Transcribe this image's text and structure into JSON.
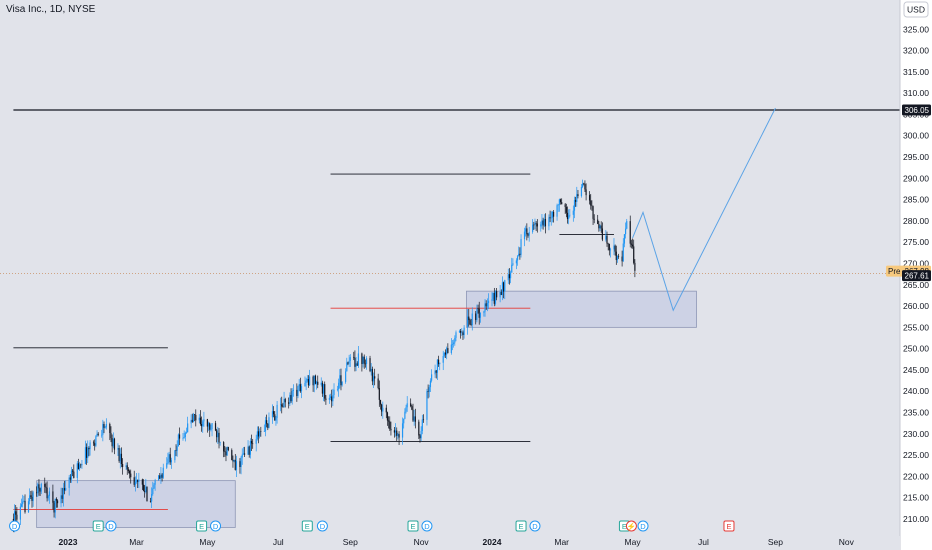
{
  "chart_data": {
    "type": "candlestick",
    "title": "Visa Inc., 1D, NYSE",
    "currency": "USD",
    "ylim": [
      206,
      330
    ],
    "y_ticks": [
      210,
      215,
      220,
      225,
      230,
      235,
      240,
      245,
      250,
      255,
      260,
      265,
      270,
      275,
      280,
      285,
      290,
      295,
      300,
      305,
      310,
      315,
      320,
      325
    ],
    "y_tick_labels": [
      "210.00",
      "215.00",
      "220.00",
      "225.00",
      "230.00",
      "235.00",
      "240.00",
      "245.00",
      "250.00",
      "255.00",
      "260.00",
      "265.00",
      "270.00",
      "275.00",
      "280.00",
      "285.00",
      "290.00",
      "295.00",
      "300.00",
      "305.00",
      "310.00",
      "315.00",
      "320.00",
      "325.00"
    ],
    "x_tick_labels": [
      {
        "label": "2023",
        "date": "2023-01-01",
        "bold": true
      },
      {
        "label": "Mar",
        "date": "2023-03-01",
        "bold": false
      },
      {
        "label": "May",
        "date": "2023-05-01",
        "bold": false
      },
      {
        "label": "Jul",
        "date": "2023-07-01",
        "bold": false
      },
      {
        "label": "Sep",
        "date": "2023-09-01",
        "bold": false
      },
      {
        "label": "Nov",
        "date": "2023-11-01",
        "bold": false
      },
      {
        "label": "2024",
        "date": "2024-01-01",
        "bold": true
      },
      {
        "label": "Mar",
        "date": "2024-03-01",
        "bold": false
      },
      {
        "label": "May",
        "date": "2024-05-01",
        "bold": false
      },
      {
        "label": "Jul",
        "date": "2024-07-01",
        "bold": false
      },
      {
        "label": "Sep",
        "date": "2024-09-01",
        "bold": false
      },
      {
        "label": "Nov",
        "date": "2024-11-01",
        "bold": false
      }
    ],
    "price_path": [
      {
        "date": "2022-11-15",
        "close": 210
      },
      {
        "date": "2022-12-10",
        "close": 218
      },
      {
        "date": "2022-12-20",
        "close": 213
      },
      {
        "date": "2023-01-15",
        "close": 225
      },
      {
        "date": "2023-02-01",
        "close": 232
      },
      {
        "date": "2023-02-20",
        "close": 222
      },
      {
        "date": "2023-03-12",
        "close": 215
      },
      {
        "date": "2023-04-05",
        "close": 228
      },
      {
        "date": "2023-04-20",
        "close": 234
      },
      {
        "date": "2023-05-10",
        "close": 230
      },
      {
        "date": "2023-05-25",
        "close": 222
      },
      {
        "date": "2023-06-20",
        "close": 232
      },
      {
        "date": "2023-07-15",
        "close": 240
      },
      {
        "date": "2023-08-01",
        "close": 243
      },
      {
        "date": "2023-08-15",
        "close": 238
      },
      {
        "date": "2023-09-01",
        "close": 247
      },
      {
        "date": "2023-09-15",
        "close": 248
      },
      {
        "date": "2023-09-30",
        "close": 235
      },
      {
        "date": "2023-10-12",
        "close": 229
      },
      {
        "date": "2023-10-20",
        "close": 238
      },
      {
        "date": "2023-10-30",
        "close": 229
      },
      {
        "date": "2023-11-10",
        "close": 244
      },
      {
        "date": "2023-11-25",
        "close": 250
      },
      {
        "date": "2023-12-10",
        "close": 256
      },
      {
        "date": "2023-12-28",
        "close": 260
      },
      {
        "date": "2024-01-15",
        "close": 266
      },
      {
        "date": "2024-01-31",
        "close": 278
      },
      {
        "date": "2024-02-15",
        "close": 279
      },
      {
        "date": "2024-02-28",
        "close": 284
      },
      {
        "date": "2024-03-08",
        "close": 281
      },
      {
        "date": "2024-03-18",
        "close": 289
      },
      {
        "date": "2024-03-28",
        "close": 282
      },
      {
        "date": "2024-04-10",
        "close": 274
      },
      {
        "date": "2024-04-22",
        "close": 271
      },
      {
        "date": "2024-04-26",
        "close": 280
      },
      {
        "date": "2024-05-04",
        "close": 268
      }
    ],
    "current_price": {
      "value": 267.61,
      "label": "267.61"
    },
    "pre_market": {
      "tag": "Pre",
      "value": 267.98,
      "label": "267.98"
    },
    "horizontal_lines": [
      {
        "value": 306.05,
        "label": "306.05",
        "color": "#131722",
        "start": "2022-11-15",
        "end": "2024-12-31"
      },
      {
        "value": 291,
        "color": "#131722",
        "start": "2023-08-15",
        "end": "2024-02-03"
      },
      {
        "value": 250.2,
        "color": "#131722",
        "start": "2022-11-15",
        "end": "2023-03-28"
      },
      {
        "value": 228.2,
        "color": "#131722",
        "start": "2023-08-15",
        "end": "2024-02-03"
      },
      {
        "value": 259.5,
        "color": "#e53935",
        "start": "2023-08-15",
        "end": "2024-02-03"
      },
      {
        "value": 212.2,
        "color": "#e53935",
        "start": "2022-11-15",
        "end": "2023-03-28"
      },
      {
        "value": 276.8,
        "color": "#131722",
        "start": "2024-02-28",
        "end": "2024-04-15"
      }
    ],
    "zones": [
      {
        "y_from": 255,
        "y_to": 263.5,
        "start": "2023-12-10",
        "end": "2024-06-25"
      },
      {
        "y_from": 208,
        "y_to": 219,
        "start": "2022-12-05",
        "end": "2023-05-25"
      }
    ],
    "projection_path": [
      {
        "date": "2024-05-01",
        "value": 276
      },
      {
        "date": "2024-05-10",
        "value": 282
      },
      {
        "date": "2024-06-05",
        "value": 259
      },
      {
        "date": "2024-09-01",
        "value": 306.5
      }
    ],
    "event_markers": [
      {
        "date": "2022-11-16",
        "type": "dividend",
        "label": "D"
      },
      {
        "date": "2023-01-27",
        "type": "earnings",
        "label": "E"
      },
      {
        "date": "2023-02-07",
        "type": "dividend",
        "label": "D"
      },
      {
        "date": "2023-04-26",
        "type": "earnings",
        "label": "E"
      },
      {
        "date": "2023-05-08",
        "type": "dividend",
        "label": "D"
      },
      {
        "date": "2023-07-26",
        "type": "earnings",
        "label": "E"
      },
      {
        "date": "2023-08-08",
        "type": "dividend",
        "label": "D"
      },
      {
        "date": "2023-10-25",
        "type": "earnings",
        "label": "E"
      },
      {
        "date": "2023-11-06",
        "type": "dividend",
        "label": "D"
      },
      {
        "date": "2024-01-26",
        "type": "earnings",
        "label": "E"
      },
      {
        "date": "2024-02-07",
        "type": "dividend",
        "label": "D"
      },
      {
        "date": "2024-04-24",
        "type": "earnings",
        "label": "E"
      },
      {
        "date": "2024-04-30",
        "type": "split",
        "label": "⚡"
      },
      {
        "date": "2024-05-10",
        "type": "dividend",
        "label": "D"
      },
      {
        "date": "2024-07-23",
        "type": "earnings-upcoming",
        "label": "E"
      }
    ],
    "colors": {
      "background": "#e1e3ea",
      "up": "#2196f3",
      "down": "#131722",
      "zone_fill": "#c5cce3",
      "zone_stroke": "#8d96b5",
      "projection": "#5ba3e6",
      "axis_bg": "#ffffff",
      "pre_tag": "#f7c97e",
      "last_price_tag": "#131722",
      "earnings": "#26a69a",
      "dividend": "#2196f3",
      "split": "#e53935"
    }
  }
}
